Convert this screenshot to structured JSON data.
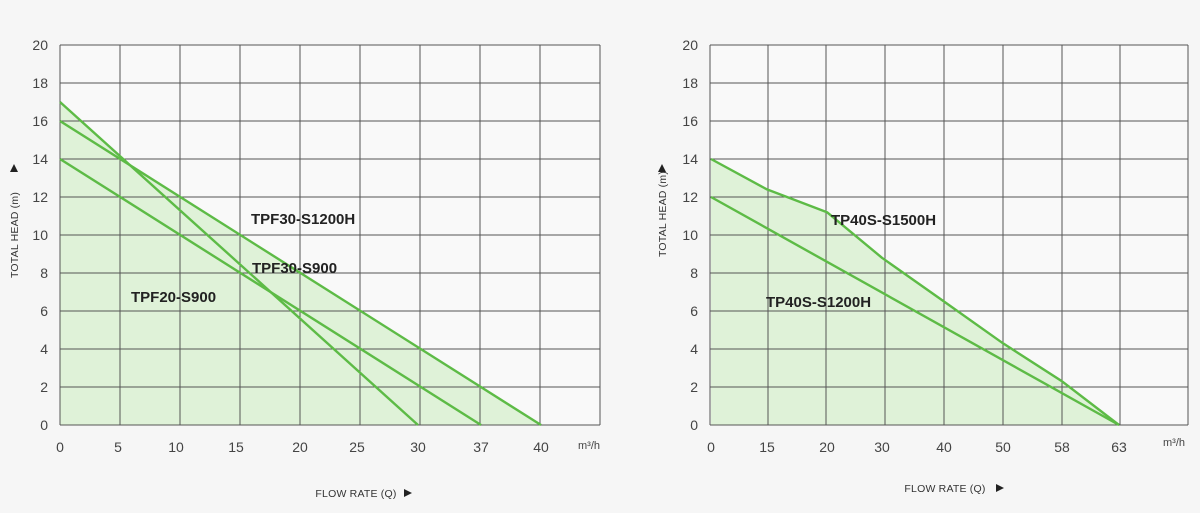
{
  "chart_data": [
    {
      "type": "line",
      "xlabel": "FLOW RATE (Q)",
      "ylabel": "TOTAL HEAD (m)",
      "x_unit": "m³/h",
      "x_ticks": [
        0,
        5,
        10,
        15,
        20,
        25,
        30,
        37,
        40
      ],
      "y_ticks": [
        0,
        2,
        4,
        6,
        8,
        10,
        12,
        14,
        16,
        18,
        20
      ],
      "ylim": [
        0,
        20
      ],
      "grid": true,
      "colors": {
        "line": "#5dbb46",
        "fill": "#dff2d8",
        "grid": "#555555"
      },
      "series": [
        {
          "name": "TPF30-S1200H",
          "x": [
            0,
            40
          ],
          "y": [
            16,
            0
          ]
        },
        {
          "name": "TPF30-S900",
          "x": [
            0,
            37
          ],
          "y": [
            14,
            0
          ]
        },
        {
          "name": "TPF20-S900",
          "x": [
            0,
            30
          ],
          "y": [
            17,
            0
          ]
        }
      ]
    },
    {
      "type": "line",
      "xlabel": "FLOW RATE (Q)",
      "ylabel": "TOTAL HEAD (m)",
      "x_unit": "m³/h",
      "x_ticks": [
        0,
        15,
        20,
        30,
        40,
        50,
        58,
        63
      ],
      "y_ticks": [
        0,
        2,
        4,
        6,
        8,
        10,
        12,
        14,
        16,
        18,
        20
      ],
      "ylim": [
        0,
        20
      ],
      "grid": true,
      "colors": {
        "line": "#5dbb46",
        "fill": "#dff2d8",
        "grid": "#555555"
      },
      "series": [
        {
          "name": "TP40S-S1500H",
          "x": [
            0,
            15,
            20,
            30,
            40,
            50,
            58,
            63
          ],
          "y": [
            14,
            12.4,
            11.2,
            8.8,
            6.5,
            4.3,
            2.3,
            0
          ]
        },
        {
          "name": "TP40S-S1200H",
          "x": [
            0,
            63
          ],
          "y": [
            12,
            0
          ]
        }
      ]
    }
  ]
}
